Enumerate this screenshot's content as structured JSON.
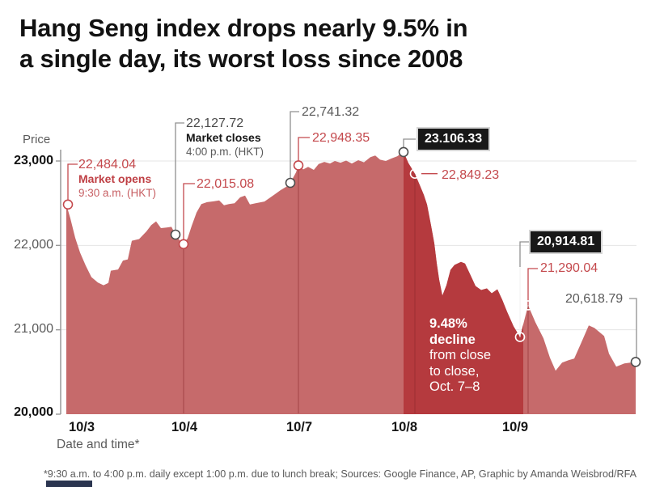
{
  "title": {
    "line1": "Hang Seng index drops nearly 9.5% in",
    "line2": "a single day, its worst loss since 2008"
  },
  "footnote": "*9:30 a.m. to 4:00 p.m. daily except 1:00 p.m. due to lunch break; Sources: Google Finance, AP, Graphic by Amanda Weisbrod/RFA",
  "chart_data": {
    "type": "area",
    "ylabel": "Price",
    "xlabel": "Date and time*",
    "ylim": [
      20000,
      23200
    ],
    "grid_values": [
      23000,
      22000,
      21000
    ],
    "y_ticks": [
      {
        "value": 23000,
        "label": "23,000",
        "emph": true
      },
      {
        "value": 22000,
        "label": "22,000",
        "emph": false
      },
      {
        "value": 21000,
        "label": "21,000",
        "emph": false
      },
      {
        "value": 20000,
        "label": "20,000",
        "emph": true
      }
    ],
    "x_labels": [
      "10/3",
      "10/4",
      "10/7",
      "10/8",
      "10/9"
    ],
    "days": [
      {
        "label": "10/3",
        "x_start": 82,
        "x_end": 227,
        "shade": "light"
      },
      {
        "label": "10/4",
        "x_start": 227,
        "x_end": 369,
        "shade": "light"
      },
      {
        "label": "10/7",
        "x_start": 369,
        "x_end": 499,
        "shade": "light"
      },
      {
        "label": "10/8",
        "x_start": 499,
        "x_end": 647,
        "shade": "dark"
      },
      {
        "label": "10/9",
        "x_start": 647,
        "x_end": 786,
        "shade": "light"
      }
    ],
    "colors": {
      "area_light": "#c66a6b",
      "area_dark": "#b53a3e",
      "divider": "rgba(140,40,44,0.5)",
      "red_text": "#c4494d",
      "gray_line": "#909090",
      "white_line": "#f5f5f5",
      "grid": "#e4e4e4",
      "axis": "#999999",
      "box_bg": "#181818"
    },
    "key_points": [
      {
        "id": "open_oct3",
        "x": 84,
        "value": 22484.04,
        "style": "red"
      },
      {
        "id": "close_oct3",
        "x": 217,
        "value": 22127.72,
        "style": "gray"
      },
      {
        "id": "open_oct4",
        "x": 227,
        "value": 22015.08,
        "style": "red"
      },
      {
        "id": "close_oct4",
        "x": 359,
        "value": 22741.32,
        "style": "gray"
      },
      {
        "id": "open_oct7",
        "x": 369,
        "value": 22948.35,
        "style": "red"
      },
      {
        "id": "close_oct7",
        "x": 499,
        "value": 23106.33,
        "style": "gray"
      },
      {
        "id": "open_oct8",
        "x": 513,
        "value": 22849.23,
        "style": "white"
      },
      {
        "id": "close_oct8",
        "x": 643,
        "value": 20914.81,
        "style": "white"
      },
      {
        "id": "open_oct9",
        "x": 653,
        "value": 21290.04,
        "style": "white"
      },
      {
        "id": "last_oct9",
        "x": 786,
        "value": 20618.79,
        "style": "gray"
      }
    ],
    "series": [
      [
        82,
        22484.04
      ],
      [
        87,
        22320
      ],
      [
        93,
        22090
      ],
      [
        99,
        21915
      ],
      [
        106,
        21760
      ],
      [
        113,
        21625
      ],
      [
        121,
        21560
      ],
      [
        128,
        21528
      ],
      [
        134,
        21555
      ],
      [
        137,
        21700
      ],
      [
        146,
        21715
      ],
      [
        152,
        21820
      ],
      [
        158,
        21835
      ],
      [
        163,
        22055
      ],
      [
        172,
        22075
      ],
      [
        181,
        22165
      ],
      [
        187,
        22240
      ],
      [
        193,
        22285
      ],
      [
        199,
        22205
      ],
      [
        206,
        22212
      ],
      [
        212,
        22220
      ],
      [
        217,
        22127.72
      ],
      [
        222,
        22062
      ],
      [
        227,
        22015.08
      ],
      [
        232,
        22085
      ],
      [
        237,
        22230
      ],
      [
        243,
        22390
      ],
      [
        249,
        22490
      ],
      [
        256,
        22512
      ],
      [
        264,
        22522
      ],
      [
        271,
        22532
      ],
      [
        277,
        22475
      ],
      [
        283,
        22490
      ],
      [
        290,
        22500
      ],
      [
        297,
        22570
      ],
      [
        303,
        22590
      ],
      [
        309,
        22485
      ],
      [
        316,
        22500
      ],
      [
        327,
        22520
      ],
      [
        339,
        22600
      ],
      [
        347,
        22655
      ],
      [
        355,
        22700
      ],
      [
        359,
        22741.32
      ],
      [
        366,
        22865
      ],
      [
        369,
        22948.35
      ],
      [
        375,
        22900
      ],
      [
        381,
        22930
      ],
      [
        388,
        22895
      ],
      [
        394,
        22965
      ],
      [
        401,
        22990
      ],
      [
        408,
        22970
      ],
      [
        414,
        23000
      ],
      [
        421,
        22980
      ],
      [
        428,
        23005
      ],
      [
        435,
        22970
      ],
      [
        443,
        23010
      ],
      [
        450,
        22985
      ],
      [
        458,
        23045
      ],
      [
        464,
        23065
      ],
      [
        470,
        23015
      ],
      [
        477,
        23000
      ],
      [
        484,
        23030
      ],
      [
        491,
        23055
      ],
      [
        499,
        23106.33
      ],
      [
        505,
        22975
      ],
      [
        513,
        22849.23
      ],
      [
        519,
        22715
      ],
      [
        524,
        22600
      ],
      [
        528,
        22485
      ],
      [
        533,
        22235
      ],
      [
        537,
        22025
      ],
      [
        540,
        21790
      ],
      [
        543,
        21595
      ],
      [
        547,
        21405
      ],
      [
        552,
        21528
      ],
      [
        557,
        21710
      ],
      [
        562,
        21768
      ],
      [
        570,
        21805
      ],
      [
        575,
        21786
      ],
      [
        582,
        21643
      ],
      [
        588,
        21518
      ],
      [
        595,
        21471
      ],
      [
        602,
        21490
      ],
      [
        608,
        21433
      ],
      [
        615,
        21480
      ],
      [
        621,
        21356
      ],
      [
        627,
        21213
      ],
      [
        635,
        21041
      ],
      [
        643,
        20914.81
      ],
      [
        653,
        21290.04
      ],
      [
        662,
        21089
      ],
      [
        672,
        20898
      ],
      [
        680,
        20669
      ],
      [
        687,
        20516
      ],
      [
        695,
        20611
      ],
      [
        703,
        20640
      ],
      [
        710,
        20659
      ],
      [
        718,
        20831
      ],
      [
        728,
        21051
      ],
      [
        735,
        21022
      ],
      [
        747,
        20926
      ],
      [
        753,
        20716
      ],
      [
        762,
        20564
      ],
      [
        772,
        20602
      ],
      [
        786,
        20618.79
      ]
    ],
    "annotations": {
      "open_oct3": {
        "value": "22,484.04",
        "label": "Market opens",
        "time": "9:30 a.m. (HKT)"
      },
      "close_oct3": {
        "value": "22,127.72",
        "label": "Market closes",
        "time": "4:00 p.m. (HKT)"
      },
      "open_oct4": {
        "value": "22,015.08"
      },
      "close_oct4": {
        "value": "22,741.32"
      },
      "open_oct7": {
        "value": "22,948.35"
      },
      "close_oct7": {
        "value": "23.106.33"
      },
      "open_oct8": {
        "value": "22,849.23"
      },
      "close_oct8": {
        "value": "20,914.81"
      },
      "open_oct9": {
        "value": "21,290.04"
      },
      "last_oct9": {
        "value": "20,618.79"
      },
      "decline": {
        "lines": [
          "9.48%",
          "decline",
          "from close",
          "to close,",
          "Oct. 7–8"
        ]
      }
    }
  }
}
